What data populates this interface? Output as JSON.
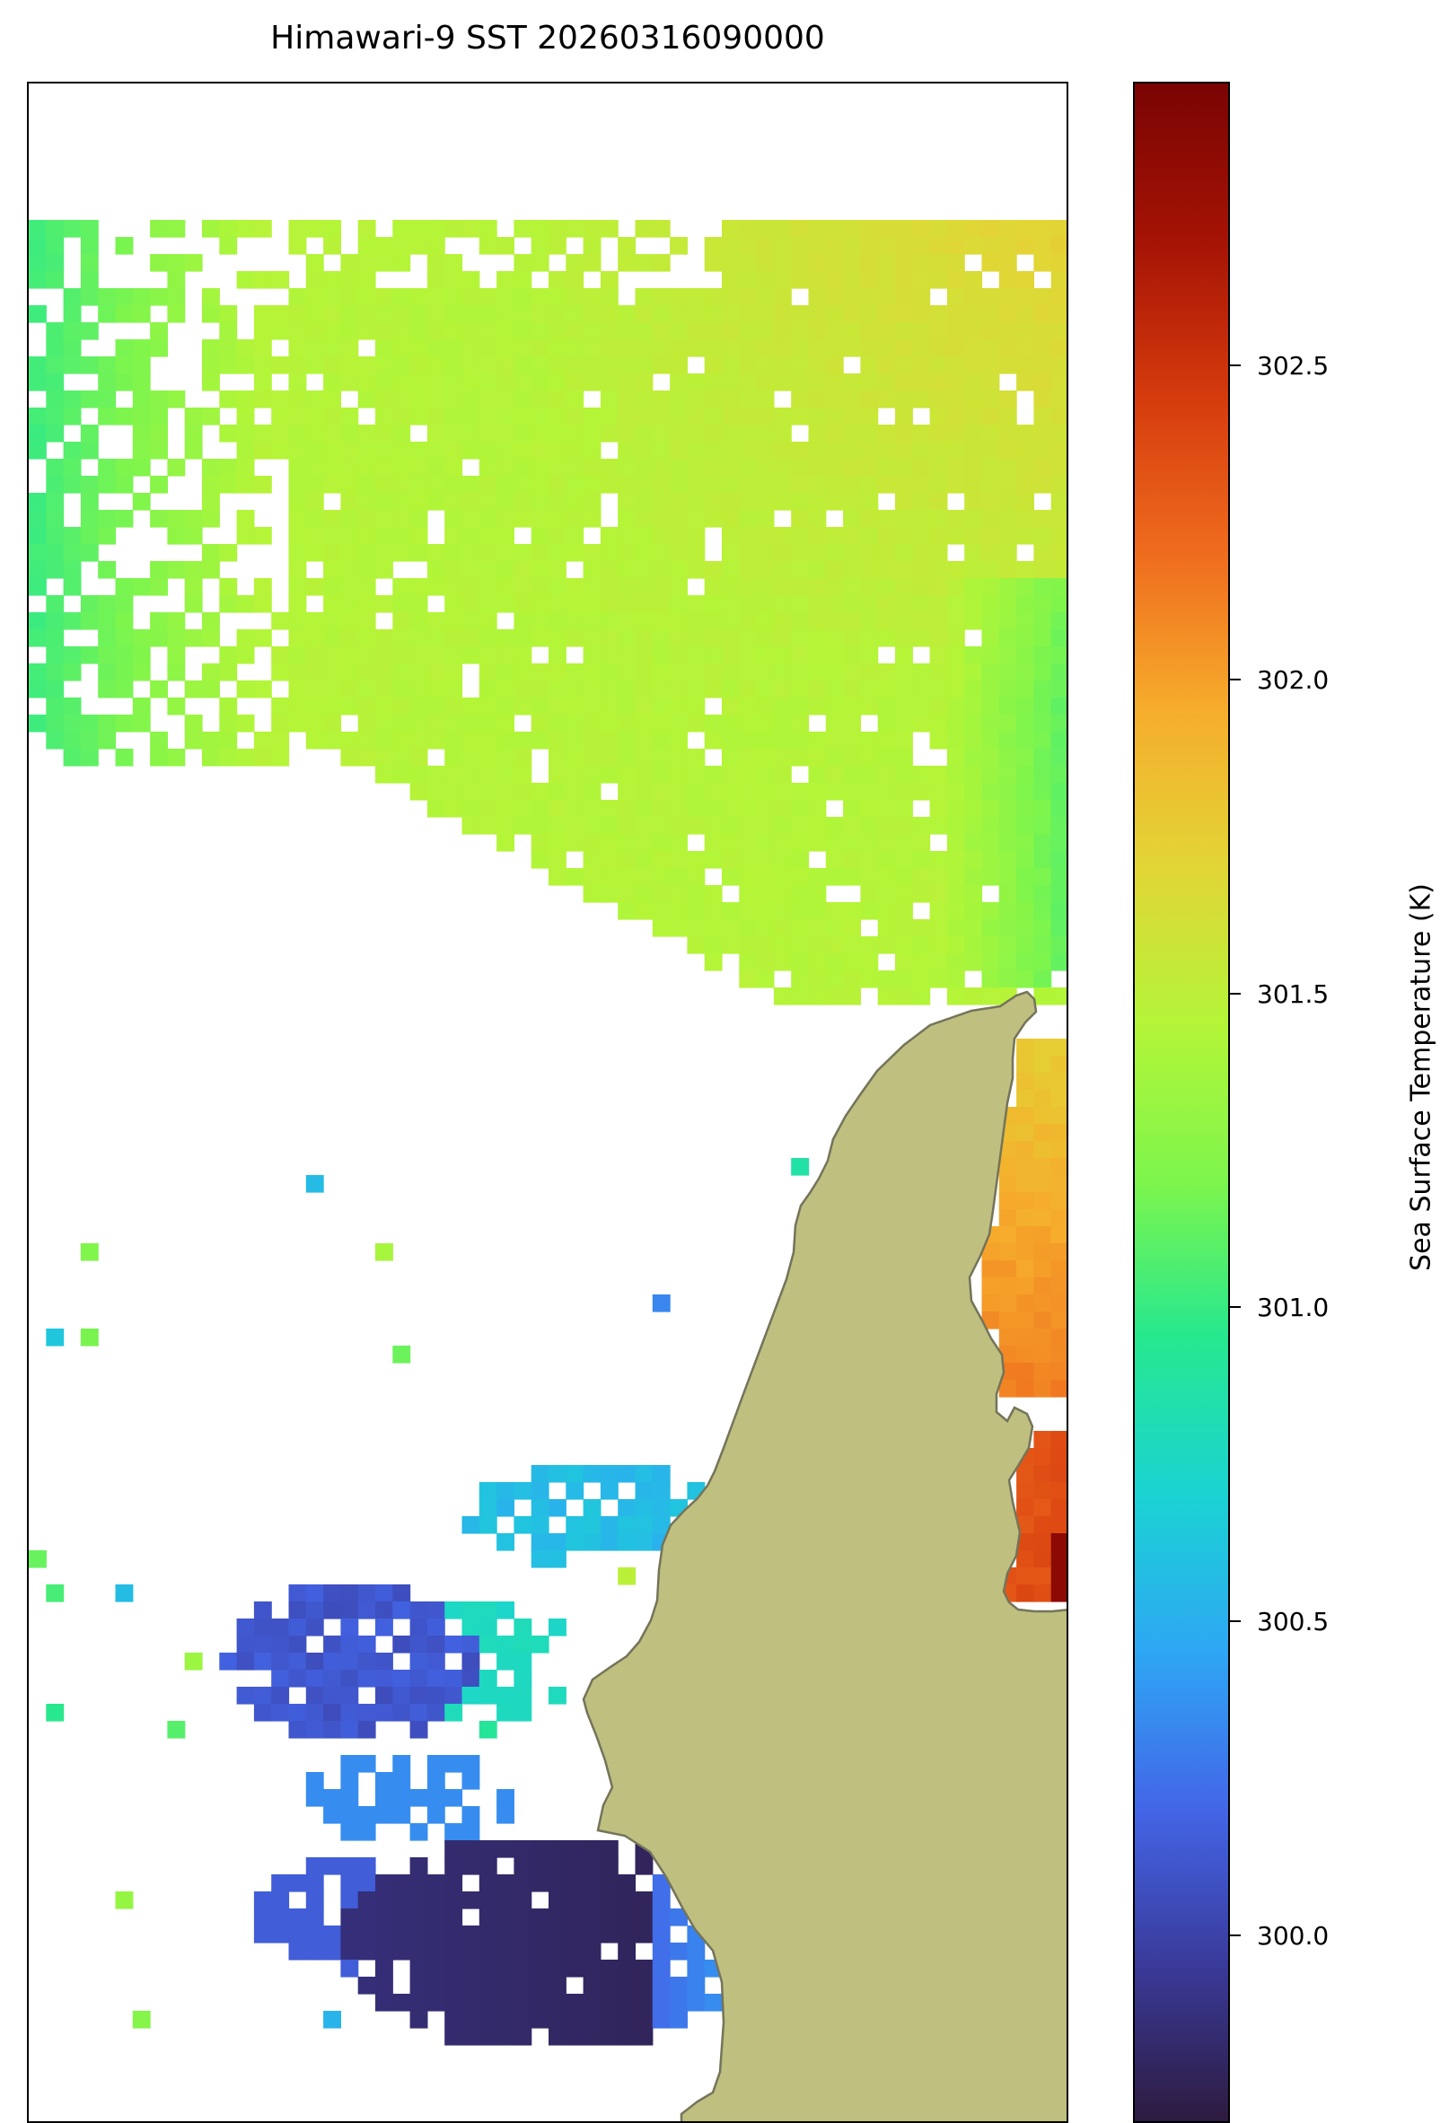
{
  "title": "Himawari-9 SST 20260316090000",
  "colors": {
    "land": "#bfbf80",
    "coastline": "#74745a",
    "no_data": "#ffffff",
    "colormap": [
      "#2d1b3f",
      "#3a3a9a",
      "#4366e8",
      "#2ea7f4",
      "#1bd3d3",
      "#26e88f",
      "#7ef54c",
      "#b4f538",
      "#e2d536",
      "#f6ad2c",
      "#ef6c1e",
      "#d53b0d",
      "#a51305",
      "#7a0403"
    ]
  },
  "colorbar": {
    "label": "Sea Surface Temperature (K)",
    "range": [
      299.7,
      302.95
    ],
    "ticks": [
      "300.0",
      "300.5",
      "301.0",
      "301.5",
      "302.0",
      "302.5"
    ]
  }
}
